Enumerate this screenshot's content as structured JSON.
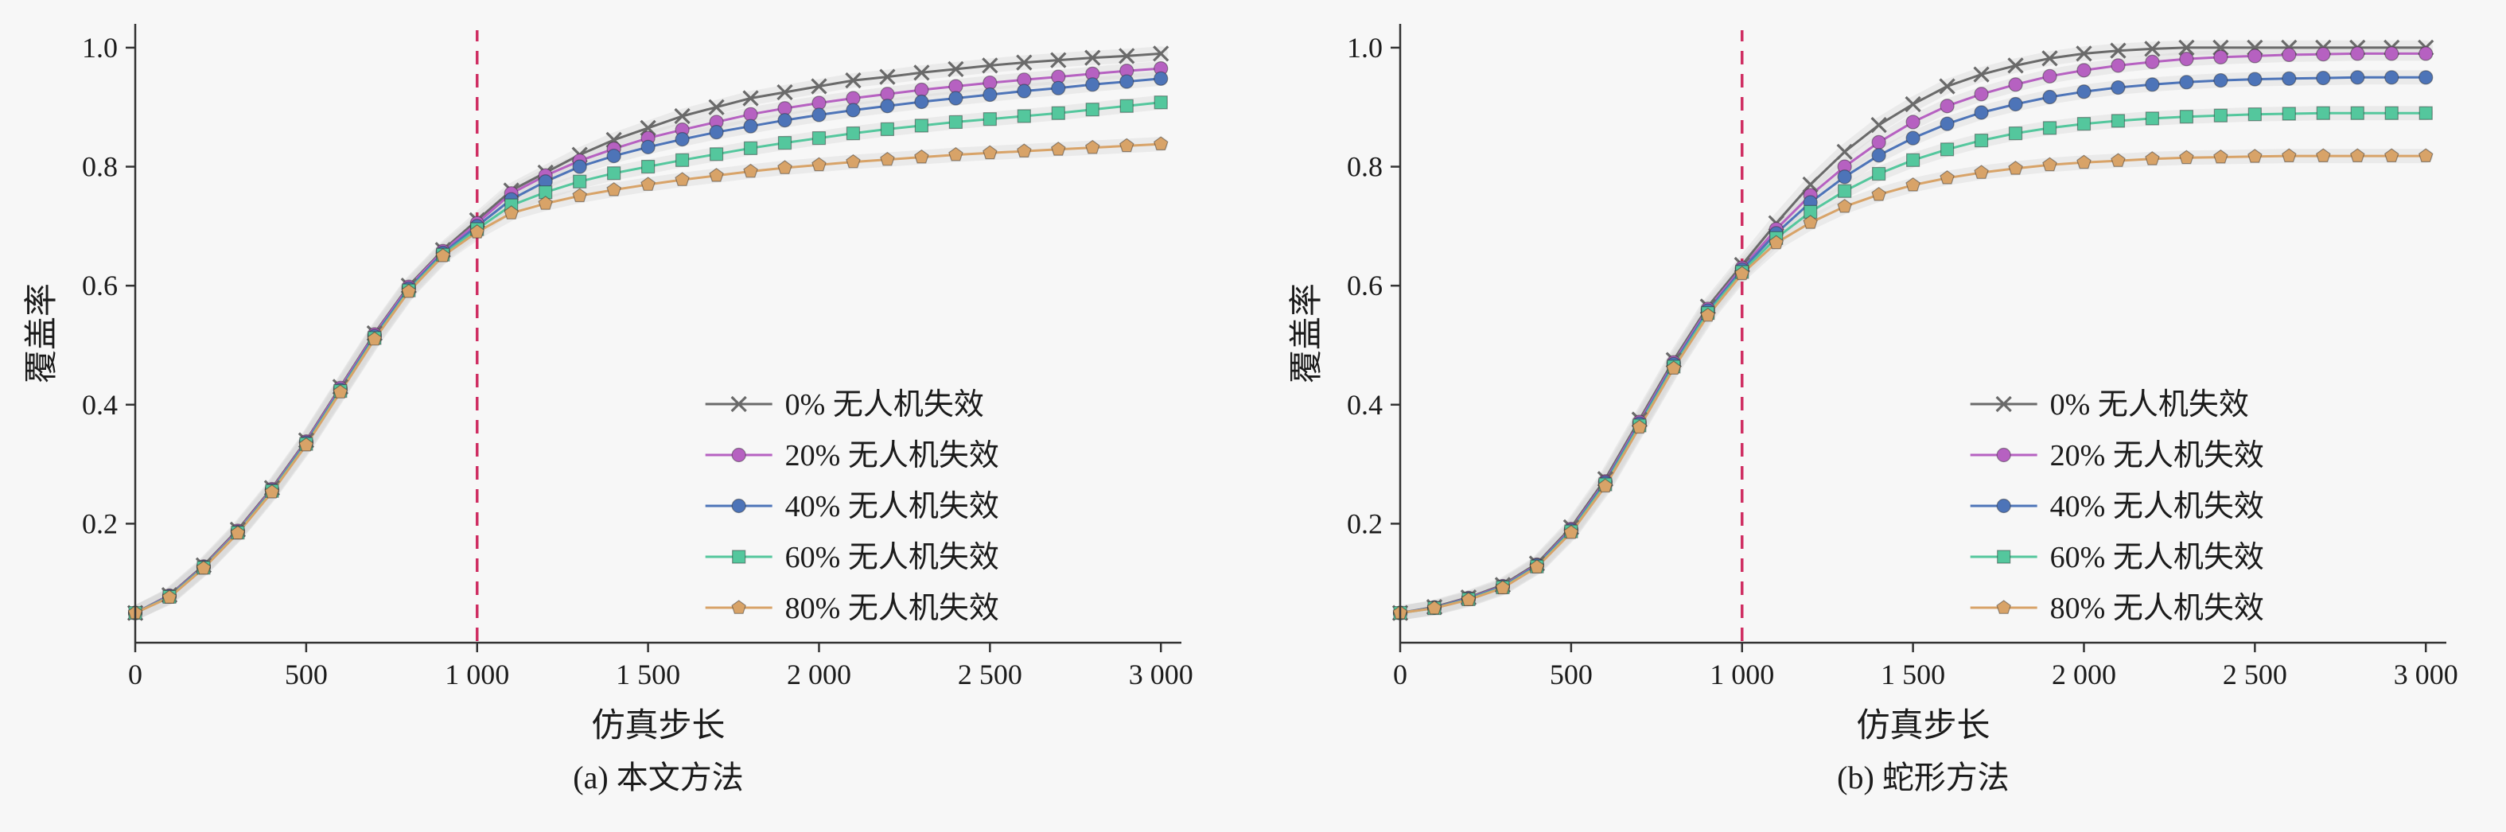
{
  "page": {
    "background": "#f7f7f7",
    "text_color": "#1b1b1b"
  },
  "chart_data": [
    {
      "type": "line",
      "caption": "(a) 本文方法",
      "xlabel": "仿真步长",
      "ylabel": "覆盖率",
      "xlim": [
        0,
        3060
      ],
      "ylim": [
        0,
        1.04
      ],
      "grid": false,
      "legend_position": "lower right",
      "axis_color": "#333333",
      "band_color": "#dadada",
      "vline": {
        "x": 1000,
        "color": "#cf2e62",
        "style": "dashed"
      },
      "xticks": [
        {
          "v": 0,
          "label": "0"
        },
        {
          "v": 500,
          "label": "500"
        },
        {
          "v": 1000,
          "label": "1 000"
        },
        {
          "v": 1500,
          "label": "1 500"
        },
        {
          "v": 2000,
          "label": "2 000"
        },
        {
          "v": 2500,
          "label": "2 500"
        },
        {
          "v": 3000,
          "label": "3 000"
        }
      ],
      "yticks": [
        {
          "v": 0.2,
          "label": "0.2"
        },
        {
          "v": 0.4,
          "label": "0.4"
        },
        {
          "v": 0.6,
          "label": "0.6"
        },
        {
          "v": 0.8,
          "label": "0.8"
        },
        {
          "v": 1.0,
          "label": "1.0"
        }
      ],
      "x": [
        0,
        100,
        200,
        300,
        400,
        500,
        600,
        700,
        800,
        900,
        1000,
        1100,
        1200,
        1300,
        1400,
        1500,
        1600,
        1700,
        1800,
        1900,
        2000,
        2100,
        2200,
        2300,
        2400,
        2500,
        2600,
        2700,
        2800,
        2900,
        3000
      ],
      "series": [
        {
          "name": "0% 无人机失效",
          "color": "#6a6a6a",
          "marker": "x",
          "values": [
            0.05,
            0.08,
            0.13,
            0.19,
            0.26,
            0.34,
            0.43,
            0.52,
            0.6,
            0.66,
            0.71,
            0.76,
            0.79,
            0.82,
            0.845,
            0.865,
            0.885,
            0.9,
            0.915,
            0.925,
            0.935,
            0.945,
            0.951,
            0.958,
            0.964,
            0.97,
            0.975,
            0.979,
            0.983,
            0.986,
            0.99
          ]
        },
        {
          "name": "20% 无人机失效",
          "color": "#b661c1",
          "marker": "circle",
          "values": [
            0.05,
            0.079,
            0.128,
            0.188,
            0.258,
            0.338,
            0.428,
            0.518,
            0.598,
            0.658,
            0.705,
            0.755,
            0.785,
            0.81,
            0.83,
            0.848,
            0.862,
            0.875,
            0.888,
            0.898,
            0.907,
            0.915,
            0.922,
            0.929,
            0.935,
            0.941,
            0.946,
            0.951,
            0.956,
            0.961,
            0.965
          ]
        },
        {
          "name": "40% 无人机失效",
          "color": "#4d74b8",
          "marker": "circle",
          "values": [
            0.05,
            0.078,
            0.127,
            0.186,
            0.256,
            0.336,
            0.425,
            0.515,
            0.595,
            0.655,
            0.7,
            0.745,
            0.775,
            0.8,
            0.818,
            0.833,
            0.846,
            0.858,
            0.868,
            0.878,
            0.887,
            0.895,
            0.902,
            0.909,
            0.915,
            0.921,
            0.927,
            0.932,
            0.938,
            0.943,
            0.948
          ]
        },
        {
          "name": "60% 无人机失效",
          "color": "#54c79d",
          "marker": "square",
          "values": [
            0.05,
            0.077,
            0.126,
            0.185,
            0.255,
            0.334,
            0.423,
            0.512,
            0.592,
            0.652,
            0.695,
            0.735,
            0.757,
            0.775,
            0.789,
            0.8,
            0.811,
            0.821,
            0.831,
            0.84,
            0.848,
            0.856,
            0.863,
            0.869,
            0.875,
            0.88,
            0.885,
            0.89,
            0.896,
            0.902,
            0.908
          ]
        },
        {
          "name": "80% 无人机失效",
          "color": "#d8a368",
          "marker": "pentagon",
          "values": [
            0.05,
            0.076,
            0.125,
            0.184,
            0.253,
            0.332,
            0.421,
            0.51,
            0.59,
            0.65,
            0.69,
            0.722,
            0.738,
            0.751,
            0.761,
            0.77,
            0.778,
            0.785,
            0.792,
            0.798,
            0.803,
            0.808,
            0.812,
            0.816,
            0.82,
            0.823,
            0.826,
            0.829,
            0.832,
            0.835,
            0.838
          ]
        }
      ]
    },
    {
      "type": "line",
      "caption": "(b) 蛇形方法",
      "xlabel": "仿真步长",
      "ylabel": "覆盖率",
      "xlim": [
        0,
        3060
      ],
      "ylim": [
        0,
        1.04
      ],
      "grid": false,
      "legend_position": "lower right",
      "axis_color": "#333333",
      "band_color": "#dadada",
      "vline": {
        "x": 1000,
        "color": "#cf2e62",
        "style": "dashed"
      },
      "xticks": [
        {
          "v": 0,
          "label": "0"
        },
        {
          "v": 500,
          "label": "500"
        },
        {
          "v": 1000,
          "label": "1 000"
        },
        {
          "v": 1500,
          "label": "1 500"
        },
        {
          "v": 2000,
          "label": "2 000"
        },
        {
          "v": 2500,
          "label": "2 500"
        },
        {
          "v": 3000,
          "label": "3 000"
        }
      ],
      "yticks": [
        {
          "v": 0.2,
          "label": "0.2"
        },
        {
          "v": 0.4,
          "label": "0.4"
        },
        {
          "v": 0.6,
          "label": "0.6"
        },
        {
          "v": 0.8,
          "label": "0.8"
        },
        {
          "v": 1.0,
          "label": "1.0"
        }
      ],
      "x": [
        0,
        100,
        200,
        300,
        400,
        500,
        600,
        700,
        800,
        900,
        1000,
        1100,
        1200,
        1300,
        1400,
        1500,
        1600,
        1700,
        1800,
        1900,
        2000,
        2100,
        2200,
        2300,
        2400,
        2500,
        2600,
        2700,
        2800,
        2900,
        3000
      ],
      "series": [
        {
          "name": "0% 无人机失效",
          "color": "#6a6a6a",
          "marker": "x",
          "values": [
            0.05,
            0.06,
            0.076,
            0.097,
            0.133,
            0.194,
            0.275,
            0.375,
            0.475,
            0.565,
            0.635,
            0.705,
            0.77,
            0.825,
            0.87,
            0.905,
            0.935,
            0.955,
            0.97,
            0.982,
            0.99,
            0.995,
            0.998,
            1.0,
            1.0,
            1.0,
            1.0,
            1.0,
            1.0,
            1.0,
            1.0
          ]
        },
        {
          "name": "20% 无人机失效",
          "color": "#b661c1",
          "marker": "circle",
          "values": [
            0.05,
            0.059,
            0.075,
            0.095,
            0.131,
            0.191,
            0.271,
            0.371,
            0.471,
            0.561,
            0.63,
            0.695,
            0.752,
            0.8,
            0.841,
            0.875,
            0.902,
            0.922,
            0.938,
            0.952,
            0.962,
            0.97,
            0.976,
            0.981,
            0.984,
            0.986,
            0.988,
            0.989,
            0.99,
            0.99,
            0.99
          ]
        },
        {
          "name": "40% 无人机失效",
          "color": "#4d74b8",
          "marker": "circle",
          "values": [
            0.05,
            0.059,
            0.074,
            0.094,
            0.13,
            0.189,
            0.269,
            0.368,
            0.468,
            0.558,
            0.627,
            0.688,
            0.74,
            0.783,
            0.819,
            0.848,
            0.872,
            0.891,
            0.905,
            0.917,
            0.926,
            0.933,
            0.938,
            0.942,
            0.945,
            0.947,
            0.948,
            0.949,
            0.95,
            0.95,
            0.95
          ]
        },
        {
          "name": "60% 无人机失效",
          "color": "#54c79d",
          "marker": "square",
          "values": [
            0.05,
            0.058,
            0.073,
            0.093,
            0.128,
            0.187,
            0.266,
            0.365,
            0.464,
            0.554,
            0.623,
            0.68,
            0.724,
            0.759,
            0.788,
            0.811,
            0.829,
            0.844,
            0.856,
            0.865,
            0.872,
            0.877,
            0.881,
            0.884,
            0.886,
            0.888,
            0.889,
            0.89,
            0.89,
            0.89,
            0.89
          ]
        },
        {
          "name": "80% 无人机失效",
          "color": "#d8a368",
          "marker": "pentagon",
          "values": [
            0.05,
            0.058,
            0.072,
            0.092,
            0.127,
            0.185,
            0.263,
            0.362,
            0.461,
            0.55,
            0.62,
            0.672,
            0.706,
            0.733,
            0.753,
            0.769,
            0.781,
            0.79,
            0.797,
            0.803,
            0.807,
            0.81,
            0.813,
            0.815,
            0.816,
            0.817,
            0.818,
            0.818,
            0.818,
            0.818,
            0.818
          ]
        }
      ]
    }
  ]
}
